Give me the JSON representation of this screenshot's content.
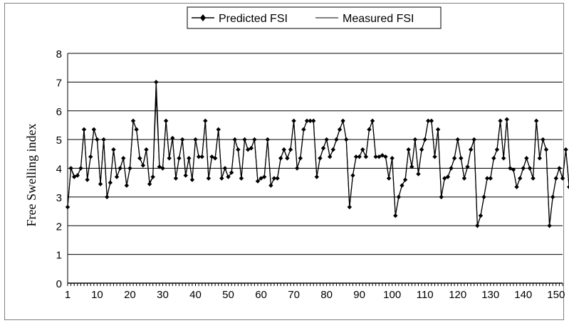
{
  "chart_data": {
    "type": "line",
    "title": "",
    "xlabel": "",
    "ylabel": "Free Swelling index",
    "xlim": [
      1,
      152
    ],
    "ylim": [
      0,
      8
    ],
    "y_ticks": [
      0,
      1,
      2,
      3,
      4,
      5,
      6,
      7,
      8
    ],
    "x_ticks": [
      1,
      10,
      20,
      30,
      40,
      50,
      60,
      70,
      80,
      90,
      100,
      110,
      120,
      130,
      140,
      150
    ],
    "grid": "horizontal",
    "legend_position": "top",
    "series": [
      {
        "name": "Predicted FSI",
        "marker": "diamond",
        "color": "#000000",
        "values": [
          2.65,
          4.0,
          3.7,
          3.75,
          4.0,
          5.35,
          3.6,
          4.4,
          5.35,
          5.0,
          3.45,
          5.0,
          3.0,
          3.5,
          4.65,
          3.7,
          4.0,
          4.35,
          3.4,
          4.0,
          5.65,
          5.35,
          4.35,
          4.1,
          4.65,
          3.45,
          3.7,
          7.0,
          4.05,
          4.0,
          5.65,
          4.35,
          5.05,
          3.65,
          4.35,
          5.0,
          3.75,
          4.35,
          3.6,
          5.0,
          4.4,
          4.4,
          5.65,
          3.65,
          4.4,
          4.35,
          5.35,
          3.65,
          4.0,
          3.7,
          3.85,
          5.0,
          4.65,
          3.65,
          5.0,
          4.65,
          4.7,
          5.0,
          3.55,
          3.65,
          3.7,
          5.0,
          3.4,
          3.65,
          3.65,
          4.35,
          4.65,
          4.35,
          4.65,
          5.65,
          4.0,
          4.35,
          5.35,
          5.65,
          5.65,
          5.65,
          3.7,
          4.35,
          4.7,
          5.0,
          4.4,
          4.65,
          5.0,
          5.35,
          5.65,
          5.0,
          2.65,
          3.75,
          4.4,
          4.4,
          4.65,
          4.4,
          5.35,
          5.65,
          4.4,
          4.4,
          4.45,
          4.4,
          3.65,
          4.35,
          2.35,
          3.0,
          3.4,
          3.6,
          4.65,
          4.05,
          5.0,
          3.8,
          4.65,
          5.0,
          5.65,
          5.65,
          4.4,
          5.35,
          3.0,
          3.65,
          3.7,
          4.0,
          4.35,
          5.0,
          4.35,
          3.65,
          4.05,
          4.65,
          5.0,
          2.0,
          2.35,
          3.0,
          3.65,
          3.65,
          4.35,
          4.65,
          5.65,
          4.35,
          5.7,
          4.0,
          3.95,
          3.35,
          3.65,
          4.0,
          4.35,
          4.0,
          3.65,
          5.65,
          4.35,
          5.0,
          4.65,
          2.0,
          3.0,
          3.65,
          4.0,
          3.65,
          4.65,
          3.35
        ]
      },
      {
        "name": "Measured FSI",
        "marker": "none",
        "color": "#000000",
        "values": [
          2.65,
          4.0,
          3.75,
          3.75,
          4.0,
          5.35,
          3.65,
          4.4,
          5.35,
          5.0,
          3.45,
          5.0,
          3.0,
          3.5,
          4.65,
          3.7,
          4.0,
          4.35,
          3.4,
          4.0,
          5.65,
          5.35,
          4.35,
          4.1,
          4.65,
          3.5,
          3.7,
          6.5,
          4.05,
          4.0,
          5.65,
          4.35,
          5.05,
          3.65,
          4.35,
          5.0,
          3.75,
          4.35,
          3.6,
          5.0,
          4.4,
          4.4,
          5.65,
          3.65,
          4.4,
          4.35,
          5.35,
          3.65,
          4.0,
          3.7,
          3.85,
          5.0,
          4.65,
          3.65,
          5.0,
          4.65,
          4.7,
          5.0,
          3.55,
          3.65,
          3.7,
          5.0,
          3.4,
          3.65,
          3.65,
          4.35,
          4.65,
          4.35,
          4.65,
          5.65,
          4.0,
          4.35,
          5.35,
          5.65,
          5.65,
          5.65,
          3.7,
          4.35,
          4.7,
          5.0,
          4.4,
          4.65,
          5.0,
          5.35,
          5.65,
          5.0,
          2.65,
          3.75,
          4.4,
          4.4,
          4.65,
          4.4,
          5.35,
          5.65,
          4.4,
          4.4,
          4.45,
          4.4,
          3.65,
          4.35,
          2.35,
          3.0,
          3.4,
          3.6,
          4.65,
          4.05,
          5.0,
          3.8,
          4.65,
          5.0,
          5.65,
          5.65,
          4.4,
          5.35,
          3.0,
          3.65,
          3.7,
          4.0,
          4.35,
          5.0,
          4.35,
          3.65,
          4.05,
          4.65,
          5.0,
          2.0,
          2.35,
          3.0,
          3.65,
          3.65,
          4.35,
          4.65,
          5.65,
          4.35,
          5.7,
          4.0,
          3.95,
          3.35,
          3.65,
          4.0,
          4.35,
          4.0,
          3.65,
          5.65,
          4.35,
          5.0,
          4.65,
          2.0,
          3.0,
          3.65,
          4.0,
          3.65,
          4.65,
          3.35
        ]
      }
    ]
  }
}
